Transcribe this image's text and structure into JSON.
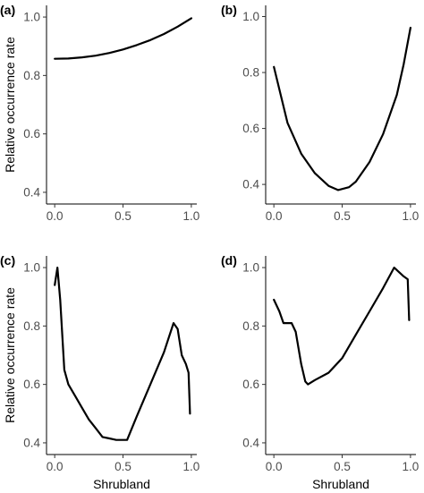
{
  "chart_data": [
    {
      "type": "line",
      "panel_label": "(a)",
      "xlabel": "",
      "ylabel": "Relative occurrence rate",
      "xlim": [
        -0.06,
        1.04
      ],
      "ylim": [
        0.36,
        1.04
      ],
      "xticks": [
        "0.0",
        "0.5",
        "1.0"
      ],
      "xtick_values": [
        0,
        0.5,
        1
      ],
      "yticks": [
        "0.4",
        "0.6",
        "0.8",
        "1.0"
      ],
      "ytick_values": [
        0.4,
        0.6,
        0.8,
        1.0
      ],
      "x": [
        0.0,
        0.1,
        0.2,
        0.3,
        0.4,
        0.5,
        0.6,
        0.7,
        0.8,
        0.9,
        1.0
      ],
      "y": [
        0.857,
        0.858,
        0.862,
        0.868,
        0.877,
        0.889,
        0.904,
        0.921,
        0.942,
        0.967,
        0.996
      ]
    },
    {
      "type": "line",
      "panel_label": "(b)",
      "xlabel": "",
      "ylabel": "",
      "xlim": [
        -0.06,
        1.04
      ],
      "ylim": [
        0.33,
        1.04
      ],
      "xticks": [
        "0.0",
        "0.5",
        "1.0"
      ],
      "xtick_values": [
        0,
        0.5,
        1
      ],
      "yticks": [
        "0.4",
        "0.6",
        "0.8",
        "1.0"
      ],
      "ytick_values": [
        0.4,
        0.6,
        0.8,
        1.0
      ],
      "x": [
        0.0,
        0.1,
        0.2,
        0.3,
        0.4,
        0.47,
        0.55,
        0.6,
        0.7,
        0.8,
        0.9,
        0.95,
        1.0
      ],
      "y": [
        0.82,
        0.62,
        0.51,
        0.44,
        0.395,
        0.38,
        0.39,
        0.41,
        0.48,
        0.58,
        0.72,
        0.83,
        0.96
      ]
    },
    {
      "type": "line",
      "panel_label": "(c)",
      "xlabel": "Shrubland",
      "ylabel": "Relative occurrence rate",
      "xlim": [
        -0.06,
        1.04
      ],
      "ylim": [
        0.36,
        1.04
      ],
      "xticks": [
        "0.0",
        "0.5",
        "1.0"
      ],
      "xtick_values": [
        0,
        0.5,
        1
      ],
      "yticks": [
        "0.4",
        "0.6",
        "0.8",
        "1.0"
      ],
      "ytick_values": [
        0.4,
        0.6,
        0.8,
        1.0
      ],
      "x": [
        0.0,
        0.02,
        0.04,
        0.07,
        0.1,
        0.15,
        0.2,
        0.25,
        0.3,
        0.35,
        0.4,
        0.45,
        0.5,
        0.53,
        0.6,
        0.7,
        0.8,
        0.87,
        0.9,
        0.93,
        0.96,
        0.98,
        0.99
      ],
      "y": [
        0.94,
        1.0,
        0.89,
        0.65,
        0.6,
        0.56,
        0.52,
        0.48,
        0.45,
        0.42,
        0.415,
        0.41,
        0.41,
        0.41,
        0.49,
        0.6,
        0.71,
        0.81,
        0.79,
        0.7,
        0.67,
        0.64,
        0.5
      ]
    },
    {
      "type": "line",
      "panel_label": "(d)",
      "xlabel": "Shrubland",
      "ylabel": "",
      "xlim": [
        -0.06,
        1.04
      ],
      "ylim": [
        0.36,
        1.04
      ],
      "xticks": [
        "0.0",
        "0.5",
        "1.0"
      ],
      "xtick_values": [
        0,
        0.5,
        1
      ],
      "yticks": [
        "0.4",
        "0.6",
        "0.8",
        "1.0"
      ],
      "ytick_values": [
        0.4,
        0.6,
        0.8,
        1.0
      ],
      "x": [
        0.0,
        0.04,
        0.07,
        0.1,
        0.13,
        0.16,
        0.2,
        0.23,
        0.25,
        0.3,
        0.4,
        0.5,
        0.6,
        0.7,
        0.8,
        0.88,
        0.95,
        0.98,
        0.99
      ],
      "y": [
        0.89,
        0.85,
        0.81,
        0.81,
        0.81,
        0.78,
        0.67,
        0.61,
        0.6,
        0.615,
        0.64,
        0.69,
        0.77,
        0.85,
        0.93,
        1.0,
        0.97,
        0.96,
        0.82
      ]
    }
  ]
}
